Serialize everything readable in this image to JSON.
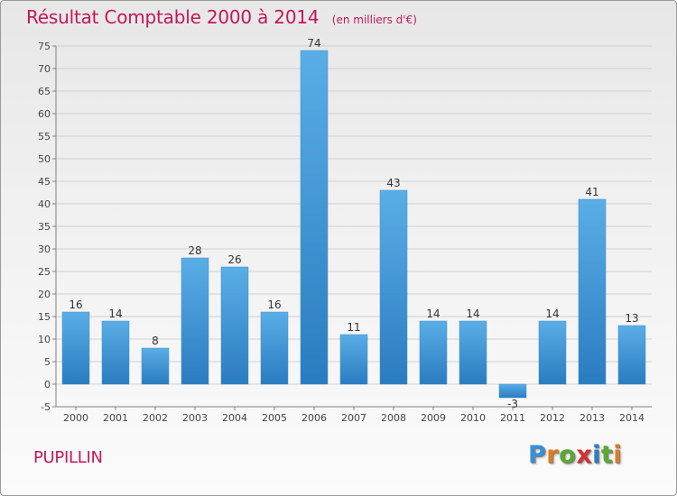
{
  "title": {
    "main": "Résultat Comptable 2000 à 2014",
    "unit": "(en milliers d'€)"
  },
  "footer": {
    "place": "PUPILLIN",
    "brand": "Proxiti"
  },
  "colors": {
    "accent": "#c2185b",
    "bar_light": "#5aaee6",
    "bar_dark": "#2a7cc0",
    "grid": "#d0d0d0",
    "axis": "#808080",
    "brand_letters": [
      "#3a8fd6",
      "#e07b20",
      "#5aa832",
      "#d63030",
      "#2e7bc4",
      "#5aa832",
      "#e07b20"
    ]
  },
  "chart_data": {
    "type": "bar",
    "title": "Résultat Comptable 2000 à 2014",
    "subtitle": "(en milliers d'€)",
    "xlabel": "",
    "ylabel": "",
    "categories": [
      "2000",
      "2001",
      "2002",
      "2003",
      "2004",
      "2005",
      "2006",
      "2007",
      "2008",
      "2009",
      "2010",
      "2011",
      "2012",
      "2013",
      "2014"
    ],
    "values": [
      16,
      14,
      8,
      28,
      26,
      16,
      74,
      11,
      43,
      14,
      14,
      -3,
      14,
      41,
      13
    ],
    "ylim": [
      -5,
      75
    ],
    "yticks": [
      -5,
      0,
      5,
      10,
      15,
      20,
      25,
      30,
      35,
      40,
      45,
      50,
      55,
      60,
      65,
      70,
      75
    ],
    "grid": true,
    "legend": "none"
  }
}
